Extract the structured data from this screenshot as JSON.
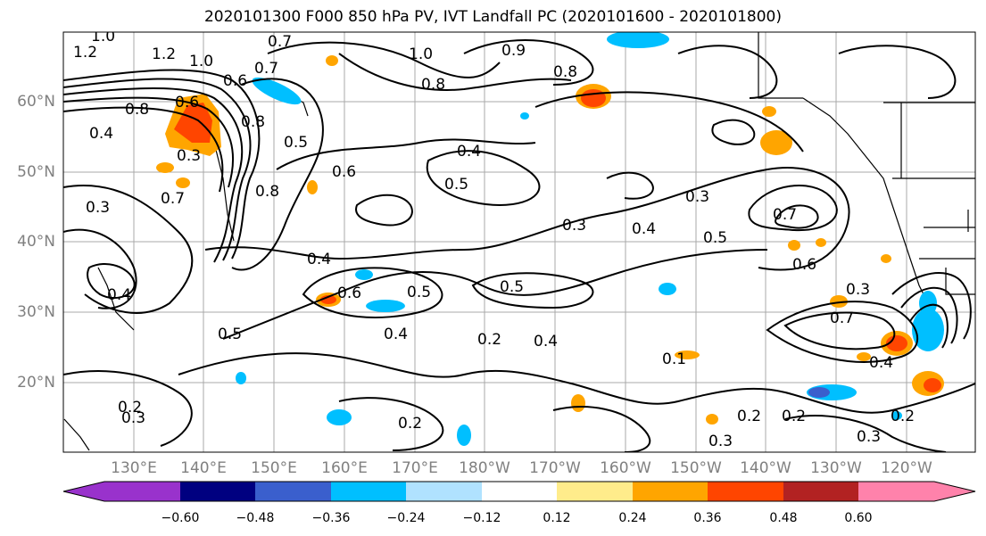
{
  "title": "2020101300 F000 850 hPa PV, IVT Landfall PC (2020101600 - 2020101800)",
  "lat_labels": [
    "60°N",
    "50°N",
    "40°N",
    "30°N",
    "20°N"
  ],
  "lon_labels": [
    "130°E",
    "140°E",
    "150°E",
    "160°E",
    "170°E",
    "180°W",
    "170°W",
    "160°W",
    "150°W",
    "140°W",
    "130°W",
    "120°W"
  ],
  "colorbar": {
    "ticks": [
      "−0.60",
      "−0.48",
      "−0.36",
      "−0.24",
      "−0.12",
      "0.12",
      "0.24",
      "0.36",
      "0.48",
      "0.60"
    ],
    "colors": [
      "#9932cc",
      "#000080",
      "#3a5fcd",
      "#00bfff",
      "#b0e2ff",
      "#ffffff",
      "#ffec8b",
      "#ffa500",
      "#ff4500",
      "#b22222",
      "#ff82ab"
    ]
  },
  "contour_labels": [
    "1.0",
    "1.2",
    "0.7",
    "0.8",
    "0.6",
    "0.4",
    "0.3",
    "0.5",
    "0.2",
    "0.1",
    "0.9"
  ]
}
